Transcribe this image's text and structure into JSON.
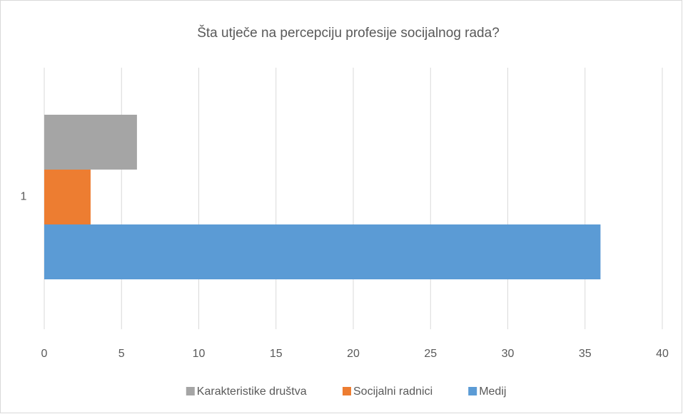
{
  "chart_data": {
    "type": "barh",
    "title": "Šta utječe na percepciju profesije socijalnog rada?",
    "categories": [
      "1"
    ],
    "series": [
      {
        "name": "Karakteristike društva",
        "color": "#a5a5a5",
        "values": [
          6
        ]
      },
      {
        "name": "Socijalni radnici",
        "color": "#ed7d31",
        "values": [
          3
        ]
      },
      {
        "name": "Medij",
        "color": "#5b9bd5",
        "values": [
          36
        ]
      }
    ],
    "xlim": [
      0,
      40
    ],
    "xticks": [
      0,
      5,
      10,
      15,
      20,
      25,
      30,
      35,
      40
    ],
    "grid": true,
    "legend": "bottom"
  }
}
